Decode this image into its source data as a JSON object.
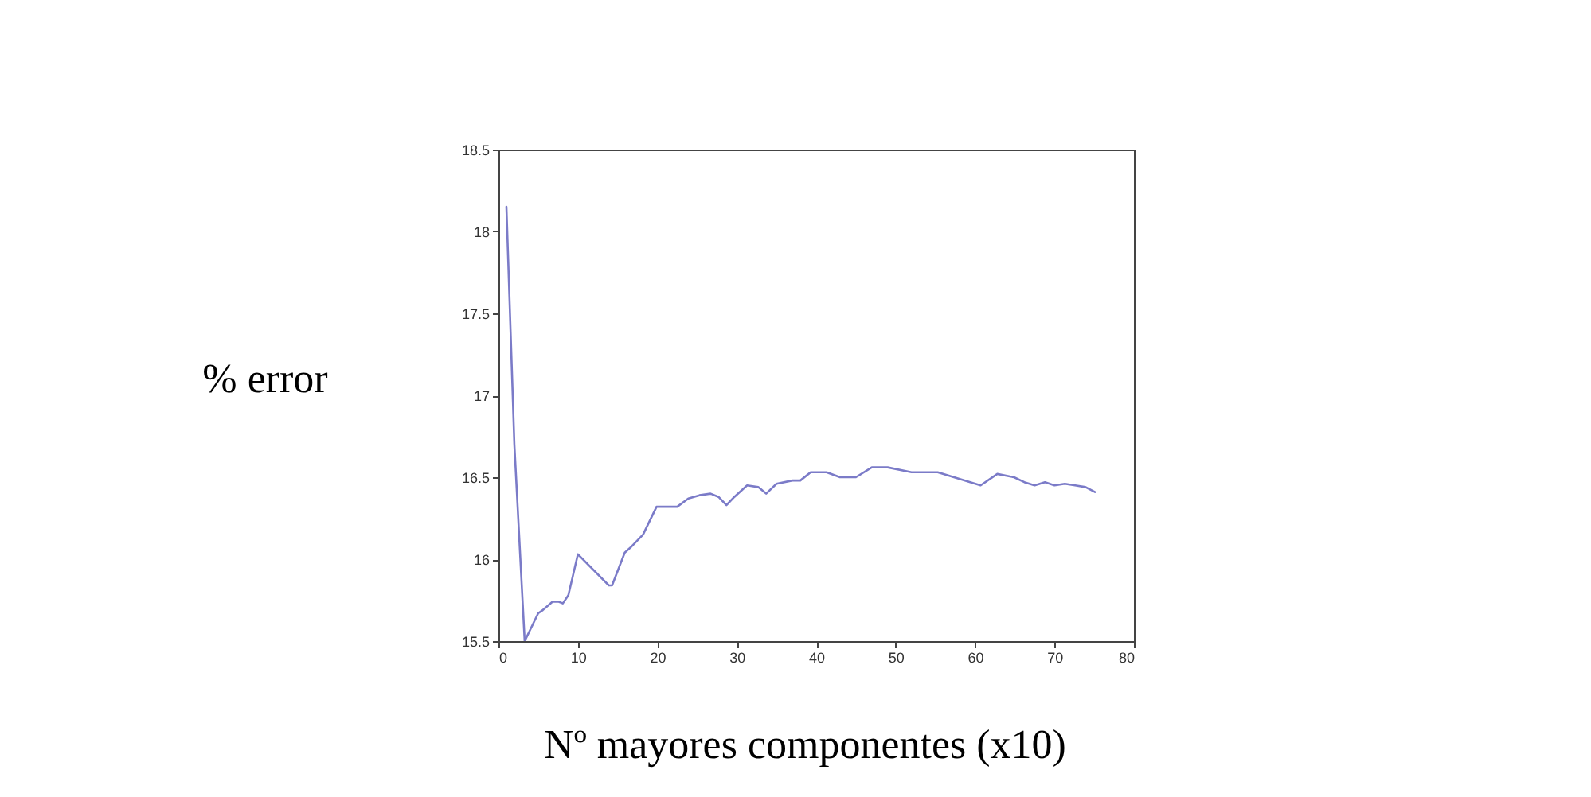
{
  "chart_data": {
    "type": "line",
    "xlabel": "Nº mayores componentes (x10)",
    "ylabel": "% error",
    "x": [
      1,
      2,
      3.3,
      5.0,
      5.6,
      6.8,
      7.6,
      8.1,
      8.8,
      10.0,
      13.9,
      14.3,
      15.9,
      16.6,
      18.2,
      19.9,
      22.5,
      23.9,
      25.3,
      26.7,
      27.7,
      28.7,
      29.7,
      31.3,
      32.7,
      33.7,
      35,
      37,
      38,
      39.3,
      41.3,
      43,
      45,
      47,
      49,
      52,
      53.3,
      55.3,
      58,
      60.7,
      62.8,
      64.9,
      66.2,
      67.5,
      68.8,
      70,
      71.3,
      72.6,
      73.9,
      75.1
    ],
    "series": [
      {
        "color": "#7b7bc8",
        "values": [
          18.15,
          16.7,
          15.5,
          15.67,
          15.69,
          15.74,
          15.74,
          15.73,
          15.78,
          16.03,
          15.84,
          15.84,
          16.04,
          16.07,
          16.15,
          16.32,
          16.32,
          16.37,
          16.39,
          16.4,
          16.38,
          16.33,
          16.38,
          16.45,
          16.44,
          16.4,
          16.46,
          16.48,
          16.48,
          16.53,
          16.53,
          16.5,
          16.5,
          16.56,
          16.56,
          16.53,
          16.53,
          16.53,
          16.49,
          16.45,
          16.52,
          16.5,
          16.47,
          16.45,
          16.47,
          16.45,
          16.46,
          16.45,
          16.44,
          16.41
        ]
      }
    ],
    "xlim": [
      0,
      80
    ],
    "xticks": [
      0,
      10,
      20,
      30,
      40,
      50,
      60,
      70,
      80
    ],
    "ylim": [
      15.5,
      18.5
    ],
    "yticks": [
      15.5,
      16,
      16.5,
      17,
      17.5,
      18,
      18.5
    ]
  }
}
